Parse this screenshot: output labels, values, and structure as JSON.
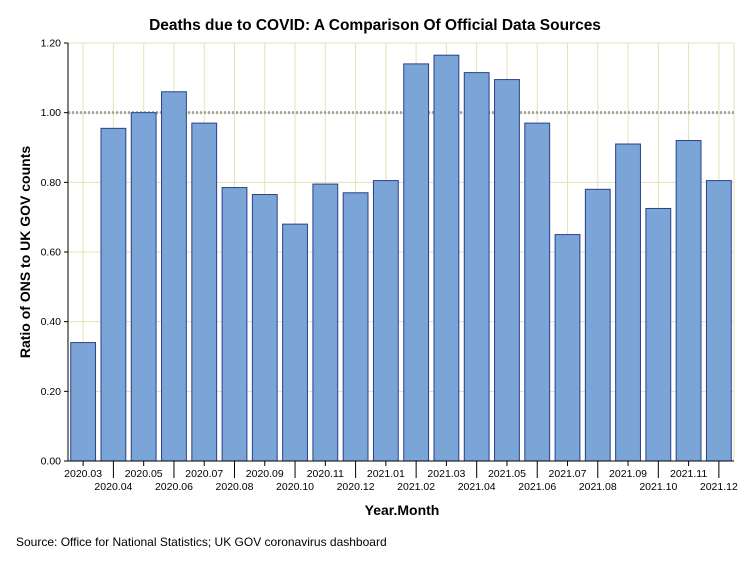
{
  "chart_data": {
    "type": "bar",
    "title": "Deaths due to COVID: A Comparison Of Official Data Sources",
    "xlabel": "Year.Month",
    "ylabel": "Ratio of ONS to UK GOV counts",
    "ylim": [
      0,
      1.2
    ],
    "yticks": [
      "0.00",
      "0.20",
      "0.40",
      "0.60",
      "0.80",
      "1.00",
      "1.20"
    ],
    "reference_line": 1.0,
    "grid": true,
    "categories": [
      "2020.03",
      "2020.04",
      "2020.05",
      "2020.06",
      "2020.07",
      "2020.08",
      "2020.09",
      "2020.10",
      "2020.11",
      "2020.12",
      "2021.01",
      "2021.02",
      "2021.03",
      "2021.04",
      "2021.05",
      "2021.06",
      "2021.07",
      "2021.08",
      "2021.09",
      "2021.10",
      "2021.11",
      "2021.12"
    ],
    "values": [
      0.34,
      0.955,
      1.0,
      1.06,
      0.97,
      0.785,
      0.765,
      0.68,
      0.795,
      0.77,
      0.805,
      1.14,
      1.165,
      1.115,
      1.095,
      0.97,
      0.65,
      0.78,
      0.91,
      0.725,
      0.92,
      0.805
    ],
    "colors": {
      "bar": "#7aa5d6",
      "bar_edge": "#2b3f8c",
      "grid": "#e3e3b8",
      "reference": "#a6a6a6",
      "axis": "#000000"
    }
  },
  "footer": {
    "source": "Source: Office for National Statistics; UK GOV coronavirus dashboard"
  }
}
